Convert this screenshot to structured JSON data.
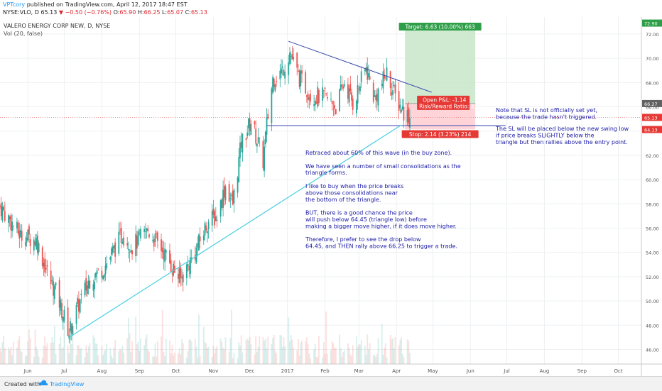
{
  "header": {
    "author": "VPTcory",
    "published_text": "published on TradingView.com, April 12, 2017 18:47 EST",
    "symbol": "NYSE:VLO, D",
    "last": "65.13",
    "change": "−0.50 (−0.76%)",
    "open_label": "O:",
    "open": "65.90",
    "high_label": "H:",
    "high": "66.25",
    "low_label": "L:",
    "low": "65.07",
    "close_label": "C:",
    "close": "65.13"
  },
  "chart_title": "VALERO ENERGY CORP NEW, D, NYSE",
  "volume_label": "Vol (20, false)",
  "footer": {
    "created_with": "Created with",
    "brand": "TradingView"
  },
  "colors": {
    "up": "#26a69a",
    "down": "#ef5350",
    "trend_line": "#3949ab",
    "support_line": "#3949ab",
    "up_trend": "#4dd0e1",
    "target_zone": "#c8e6c9",
    "stop_zone": "#ffcdd2",
    "annotation_text": "#1a1aa6",
    "price_tag": "#e53935"
  },
  "annotations": {
    "main_note": [
      "Retraced about 60% of this wave (in the buy zone).",
      "",
      "We have seen a number of small consolidations as the",
      "triangle forms.",
      "",
      "I like to buy when the price breaks",
      "above those consolidations near",
      "the bottom of the triangle.",
      "",
      "BUT, there is a good chance the price",
      "will push below 64.45 (triangle low) before",
      "making a bigger move higher, if it does move higher.",
      "",
      "Therefore, I prefer to see the drop below",
      "64.45, and THEN rally above 66.25 to trigger a trade."
    ],
    "sl_note_1": [
      "Note that SL is not officially set yet,",
      "because the trade hasn't triggered."
    ],
    "sl_note_2": [
      "The SL will be placed below the new swing low",
      "if price breaks SLIGHTLY below the",
      "triangle but then rallies above the entry point."
    ]
  },
  "position": {
    "target_label": "Target: 6.63 (10.00%) 663",
    "stop_label": "Stop: 2.14 (3.23%) 214",
    "pnl_label": "Open P&L: -1.14",
    "rr_label": "Risk/Reward Ratio: 3.1",
    "entry": 66.27,
    "target": 72.9,
    "stop": 64.13
  },
  "price_tags": {
    "target": "72.90",
    "entry": "66.27",
    "last": "65.13",
    "stop": "64.13"
  },
  "chart_data": {
    "type": "candlestick",
    "title": "VALERO ENERGY CORP NEW, D, NYSE",
    "x_range": [
      "2016-05-09",
      "2017-10-20"
    ],
    "y_range": [
      44.8,
      73.4
    ],
    "y_ticks": [
      46,
      48,
      50,
      52,
      54,
      56,
      58,
      60,
      62,
      64,
      66,
      68,
      70,
      72
    ],
    "x_ticks": [
      {
        "label": "Jun",
        "date": "2016-06-01"
      },
      {
        "label": "Jul",
        "date": "2016-07-01"
      },
      {
        "label": "Aug",
        "date": "2016-08-01"
      },
      {
        "label": "Sep",
        "date": "2016-09-01"
      },
      {
        "label": "Oct",
        "date": "2016-10-01"
      },
      {
        "label": "Nov",
        "date": "2016-11-01"
      },
      {
        "label": "Dec",
        "date": "2016-12-01"
      },
      {
        "label": "2017",
        "date": "2017-01-01"
      },
      {
        "label": "Feb",
        "date": "2017-02-01"
      },
      {
        "label": "Mar",
        "date": "2017-03-01"
      },
      {
        "label": "Apr",
        "date": "2017-04-01"
      },
      {
        "label": "May",
        "date": "2017-05-01"
      },
      {
        "label": "Jun",
        "date": "2017-06-01"
      },
      {
        "label": "Jul",
        "date": "2017-07-01"
      },
      {
        "label": "Aug",
        "date": "2017-08-01"
      },
      {
        "label": "Sep",
        "date": "2017-09-01"
      },
      {
        "label": "Oct",
        "date": "2017-10-01"
      }
    ],
    "price_path": [
      [
        "2016-05-09",
        57.8
      ],
      [
        "2016-05-25",
        55.5
      ],
      [
        "2016-06-08",
        55.0
      ],
      [
        "2016-06-20",
        51.5
      ],
      [
        "2016-06-24",
        50.8
      ],
      [
        "2016-07-05",
        47.4
      ],
      [
        "2016-07-12",
        49.5
      ],
      [
        "2016-07-22",
        51.8
      ],
      [
        "2016-08-03",
        52.8
      ],
      [
        "2016-08-18",
        55.5
      ],
      [
        "2016-08-26",
        54.5
      ],
      [
        "2016-09-08",
        55.8
      ],
      [
        "2016-09-20",
        54.2
      ],
      [
        "2016-10-01",
        52.3
      ],
      [
        "2016-10-05",
        51.8
      ],
      [
        "2016-10-18",
        54.2
      ],
      [
        "2016-10-27",
        56.5
      ],
      [
        "2016-11-04",
        57.0
      ],
      [
        "2016-11-11",
        59.5
      ],
      [
        "2016-11-17",
        58.0
      ],
      [
        "2016-11-24",
        63.0
      ],
      [
        "2016-12-02",
        64.8
      ],
      [
        "2016-12-08",
        63.0
      ],
      [
        "2016-12-12",
        61.5
      ],
      [
        "2016-12-15",
        64.5
      ],
      [
        "2016-12-20",
        68.3
      ],
      [
        "2016-12-28",
        69.0
      ],
      [
        "2017-01-03",
        70.5
      ],
      [
        "2017-01-10",
        68.5
      ],
      [
        "2017-01-20",
        67.0
      ],
      [
        "2017-01-31",
        66.8
      ],
      [
        "2017-02-10",
        66.0
      ],
      [
        "2017-02-17",
        68.0
      ],
      [
        "2017-02-24",
        66.3
      ],
      [
        "2017-03-07",
        69.2
      ],
      [
        "2017-03-14",
        66.6
      ],
      [
        "2017-03-24",
        68.8
      ],
      [
        "2017-03-31",
        66.8
      ],
      [
        "2017-04-07",
        65.6
      ],
      [
        "2017-04-12",
        65.13
      ]
    ],
    "triangle_upper": [
      [
        "2017-01-02",
        71.4
      ],
      [
        "2017-04-30",
        67.2
      ]
    ],
    "triangle_lower": [
      [
        "2016-12-15",
        64.45
      ],
      [
        "2017-06-30",
        64.45
      ]
    ],
    "uptrend": [
      [
        "2016-07-05",
        47.0
      ],
      [
        "2017-04-05",
        64.5
      ]
    ],
    "target_zone": {
      "from": "2017-04-08",
      "to": "2017-06-05",
      "low": 66.27,
      "high": 72.9
    },
    "stop_zone": {
      "from": "2017-04-08",
      "to": "2017-06-05",
      "low": 64.13,
      "high": 66.27
    }
  }
}
